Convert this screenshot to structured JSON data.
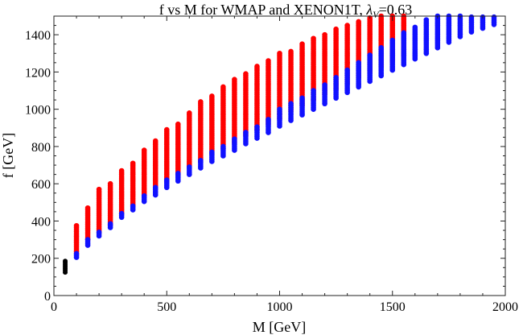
{
  "chart_data": {
    "type": "scatter",
    "title_prefix": "f vs M for WMAP and XENON1T, ",
    "title_symbol": "λ",
    "title_subscript": "V",
    "title_suffix": "=0.63",
    "xlabel": "M [GeV]",
    "ylabel": "f [GeV]",
    "xlim": [
      0,
      2000
    ],
    "ylim": [
      0,
      1500
    ],
    "x_ticks": [
      0,
      500,
      1000,
      1500,
      2000
    ],
    "x_tick_labels": [
      "0",
      "500",
      "1000",
      "1500",
      "2000"
    ],
    "y_ticks": [
      0,
      200,
      400,
      600,
      800,
      1000,
      1200,
      1400
    ],
    "y_tick_labels": [
      "0",
      "200",
      "400",
      "600",
      "800",
      "1000",
      "1200",
      "1400"
    ],
    "colors": {
      "red": "#ff0000",
      "blue": "#1010ff",
      "black": "#000000"
    },
    "series": [
      {
        "name": "red",
        "description": "vertical point columns (f from min to max at each M)",
        "columns": [
          {
            "M": 100,
            "f_min": 225,
            "f_max": 375
          },
          {
            "M": 150,
            "f_min": 300,
            "f_max": 470
          },
          {
            "M": 200,
            "f_min": 340,
            "f_max": 570
          },
          {
            "M": 250,
            "f_min": 380,
            "f_max": 600
          },
          {
            "M": 300,
            "f_min": 440,
            "f_max": 675
          },
          {
            "M": 350,
            "f_min": 480,
            "f_max": 710
          },
          {
            "M": 400,
            "f_min": 540,
            "f_max": 780
          },
          {
            "M": 450,
            "f_min": 580,
            "f_max": 830
          },
          {
            "M": 500,
            "f_min": 610,
            "f_max": 895
          },
          {
            "M": 550,
            "f_min": 650,
            "f_max": 925
          },
          {
            "M": 600,
            "f_min": 690,
            "f_max": 985
          },
          {
            "M": 650,
            "f_min": 720,
            "f_max": 1040
          },
          {
            "M": 700,
            "f_min": 760,
            "f_max": 1070
          },
          {
            "M": 750,
            "f_min": 790,
            "f_max": 1120
          },
          {
            "M": 800,
            "f_min": 820,
            "f_max": 1160
          },
          {
            "M": 850,
            "f_min": 860,
            "f_max": 1190
          },
          {
            "M": 900,
            "f_min": 890,
            "f_max": 1230
          },
          {
            "M": 950,
            "f_min": 920,
            "f_max": 1260
          },
          {
            "M": 1000,
            "f_min": 950,
            "f_max": 1300
          },
          {
            "M": 1050,
            "f_min": 990,
            "f_max": 1310
          },
          {
            "M": 1100,
            "f_min": 1020,
            "f_max": 1350
          },
          {
            "M": 1150,
            "f_min": 1050,
            "f_max": 1380
          },
          {
            "M": 1200,
            "f_min": 1080,
            "f_max": 1400
          },
          {
            "M": 1250,
            "f_min": 1110,
            "f_max": 1430
          },
          {
            "M": 1300,
            "f_min": 1140,
            "f_max": 1450
          },
          {
            "M": 1350,
            "f_min": 1170,
            "f_max": 1470
          },
          {
            "M": 1400,
            "f_min": 1200,
            "f_max": 1490
          },
          {
            "M": 1450,
            "f_min": 1230,
            "f_max": 1500
          },
          {
            "M": 1500,
            "f_min": 1260,
            "f_max": 1500
          },
          {
            "M": 1550,
            "f_min": 1290,
            "f_max": 1500
          }
        ]
      },
      {
        "name": "blue",
        "description": "vertical point columns (f from min to max at each M)",
        "columns": [
          {
            "M": 100,
            "f_min": 205,
            "f_max": 225
          },
          {
            "M": 150,
            "f_min": 270,
            "f_max": 300
          },
          {
            "M": 200,
            "f_min": 320,
            "f_max": 340
          },
          {
            "M": 250,
            "f_min": 365,
            "f_max": 385
          },
          {
            "M": 300,
            "f_min": 420,
            "f_max": 440
          },
          {
            "M": 350,
            "f_min": 460,
            "f_max": 485
          },
          {
            "M": 400,
            "f_min": 505,
            "f_max": 540
          },
          {
            "M": 450,
            "f_min": 540,
            "f_max": 580
          },
          {
            "M": 500,
            "f_min": 580,
            "f_max": 620
          },
          {
            "M": 550,
            "f_min": 615,
            "f_max": 660
          },
          {
            "M": 600,
            "f_min": 650,
            "f_max": 695
          },
          {
            "M": 650,
            "f_min": 685,
            "f_max": 730
          },
          {
            "M": 700,
            "f_min": 720,
            "f_max": 770
          },
          {
            "M": 750,
            "f_min": 750,
            "f_max": 805
          },
          {
            "M": 800,
            "f_min": 780,
            "f_max": 840
          },
          {
            "M": 850,
            "f_min": 815,
            "f_max": 875
          },
          {
            "M": 900,
            "f_min": 845,
            "f_max": 910
          },
          {
            "M": 950,
            "f_min": 875,
            "f_max": 950
          },
          {
            "M": 1000,
            "f_min": 910,
            "f_max": 1000
          },
          {
            "M": 1050,
            "f_min": 940,
            "f_max": 1030
          },
          {
            "M": 1100,
            "f_min": 970,
            "f_max": 1060
          },
          {
            "M": 1150,
            "f_min": 1000,
            "f_max": 1100
          },
          {
            "M": 1200,
            "f_min": 1030,
            "f_max": 1135
          },
          {
            "M": 1250,
            "f_min": 1060,
            "f_max": 1175
          },
          {
            "M": 1300,
            "f_min": 1090,
            "f_max": 1210
          },
          {
            "M": 1350,
            "f_min": 1120,
            "f_max": 1250
          },
          {
            "M": 1400,
            "f_min": 1150,
            "f_max": 1290
          },
          {
            "M": 1450,
            "f_min": 1180,
            "f_max": 1330
          },
          {
            "M": 1500,
            "f_min": 1210,
            "f_max": 1370
          },
          {
            "M": 1550,
            "f_min": 1240,
            "f_max": 1410
          },
          {
            "M": 1600,
            "f_min": 1270,
            "f_max": 1445
          },
          {
            "M": 1650,
            "f_min": 1300,
            "f_max": 1480
          },
          {
            "M": 1700,
            "f_min": 1330,
            "f_max": 1500
          },
          {
            "M": 1750,
            "f_min": 1360,
            "f_max": 1500
          },
          {
            "M": 1800,
            "f_min": 1390,
            "f_max": 1500
          },
          {
            "M": 1850,
            "f_min": 1415,
            "f_max": 1500
          },
          {
            "M": 1900,
            "f_min": 1435,
            "f_max": 1500
          },
          {
            "M": 1950,
            "f_min": 1455,
            "f_max": 1500
          }
        ]
      },
      {
        "name": "black",
        "description": "small cluster near M = 50",
        "columns": [
          {
            "M": 50,
            "f_min": 125,
            "f_max": 185
          }
        ]
      }
    ],
    "red_overlay_points": [
      {
        "M": 1300,
        "f": 1250
      },
      {
        "M": 1450,
        "f": 1370
      }
    ]
  }
}
